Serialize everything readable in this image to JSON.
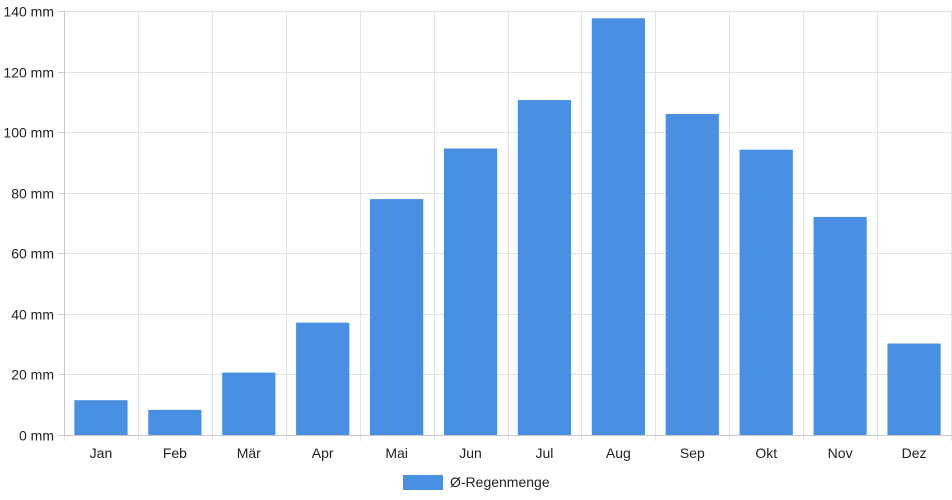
{
  "chart_data": {
    "type": "bar",
    "title": "",
    "xlabel": "",
    "ylabel": "",
    "categories": [
      "Jan",
      "Feb",
      "Mär",
      "Apr",
      "Mai",
      "Jun",
      "Jul",
      "Aug",
      "Sep",
      "Okt",
      "Nov",
      "Dez"
    ],
    "series": [
      {
        "name": "Ø-Regenmenge",
        "color": "#4a90e2",
        "values": [
          11.5,
          8.3,
          20.6,
          37.1,
          77.9,
          94.6,
          110.6,
          137.6,
          106.0,
          94.2,
          72.0,
          30.2
        ]
      }
    ],
    "ylim": [
      0,
      140
    ],
    "yticks": [
      0,
      20,
      40,
      60,
      80,
      100,
      120,
      140
    ],
    "ytick_labels": [
      "0 mm",
      "20 mm",
      "40 mm",
      "60 mm",
      "80 mm",
      "100 mm",
      "120 mm",
      "140 mm"
    ],
    "grid": true,
    "legend": "bottom-center"
  }
}
